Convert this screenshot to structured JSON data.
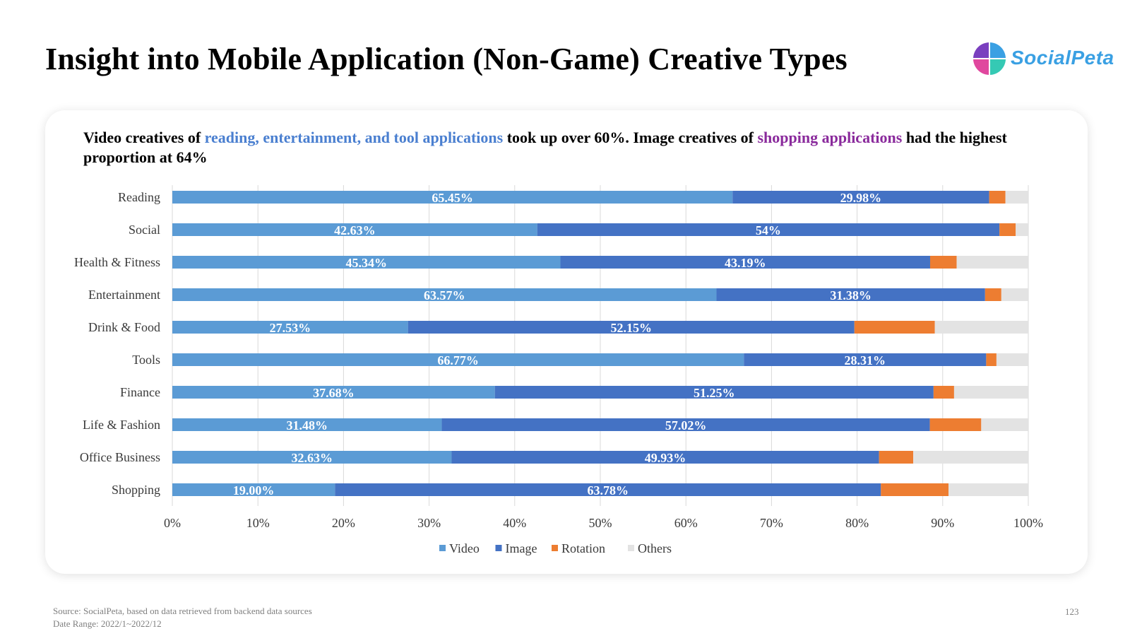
{
  "title": "Insight into Mobile Application (Non-Game) Creative Types",
  "logo": {
    "text": "SocialPeta",
    "icon": "socialpeta-logo-icon"
  },
  "headline": {
    "part1": "Video creatives of ",
    "highlight1": "reading, entertainment, and tool applications",
    "part2": " took up over 60%. Image creatives of ",
    "highlight2": "shopping applications",
    "part3": " had the highest proportion at 64%"
  },
  "colors": {
    "Video": "#5b9bd5",
    "Image": "#4472c4",
    "Rotation": "#ed7d31",
    "Others": "#e3e3e3",
    "highlight_blue": "#4a7fd0",
    "highlight_purple": "#8a2a9c"
  },
  "chart_data": {
    "type": "bar",
    "orientation": "horizontal",
    "stacked": true,
    "categories": [
      "Reading",
      "Social",
      "Health & Fitness",
      "Entertainment",
      "Drink & Food",
      "Tools",
      "Finance",
      "Life & Fashion",
      "Office Business",
      "Shopping"
    ],
    "series": [
      {
        "name": "Video",
        "values": [
          65.45,
          42.63,
          45.34,
          63.57,
          27.53,
          66.77,
          37.68,
          31.48,
          32.63,
          19.0
        ],
        "labels": [
          "65.45%",
          "42.63%",
          "45.34%",
          "63.57%",
          "27.53%",
          "66.77%",
          "37.68%",
          "31.48%",
          "32.63%",
          "19.00%"
        ]
      },
      {
        "name": "Image",
        "values": [
          29.98,
          54,
          43.19,
          31.38,
          52.15,
          28.31,
          51.25,
          57.02,
          49.93,
          63.78
        ],
        "labels": [
          "29.98%",
          "54%",
          "43.19%",
          "31.38%",
          "52.15%",
          "28.31%",
          "51.25%",
          "57.02%",
          "49.93%",
          "63.78%"
        ]
      },
      {
        "name": "Rotation",
        "values": [
          1.9,
          1.9,
          3.1,
          1.9,
          9.4,
          1.2,
          2.4,
          6.0,
          4.0,
          7.9
        ]
      },
      {
        "name": "Others",
        "values": [
          2.67,
          1.47,
          8.37,
          3.15,
          10.92,
          3.72,
          8.67,
          5.5,
          13.44,
          9.32
        ]
      }
    ],
    "xlim": [
      0,
      100
    ],
    "xticks": [
      "0%",
      "10%",
      "20%",
      "30%",
      "40%",
      "50%",
      "60%",
      "70%",
      "80%",
      "90%",
      "100%"
    ],
    "grid": true,
    "legend": "bottom"
  },
  "footer": {
    "source": "Source: SocialPeta, based on data retrieved from backend data sources",
    "date_range": "Date Range:  2022/1~2022/12",
    "page_number": "123"
  }
}
